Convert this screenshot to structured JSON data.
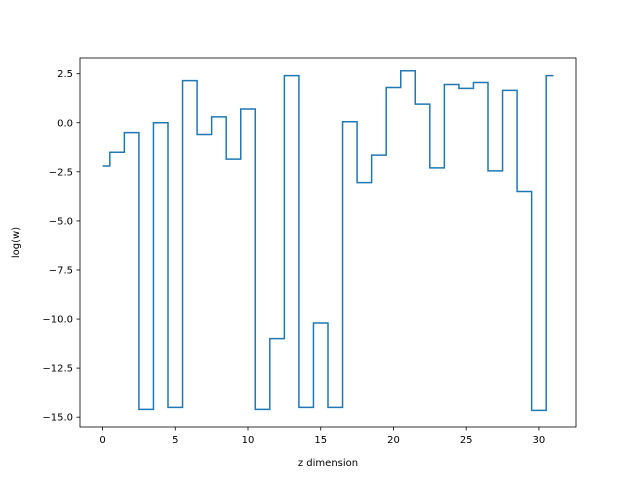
{
  "chart_data": {
    "type": "line",
    "drawstyle": "steps-mid",
    "title": "",
    "xlabel": "z dimension",
    "ylabel": "log(w)",
    "xlim": [
      -1.55,
      32.55
    ],
    "ylim": [
      -15.5,
      3.3
    ],
    "grid": false,
    "legend": "none",
    "x_ticks": [
      0,
      5,
      10,
      15,
      20,
      25,
      30
    ],
    "x_tick_labels": [
      "0",
      "5",
      "10",
      "15",
      "20",
      "25",
      "30"
    ],
    "y_ticks": [
      2.5,
      0.0,
      -2.5,
      -5.0,
      -7.5,
      -10.0,
      -12.5,
      -15.0
    ],
    "y_tick_labels": [
      "2.5",
      "0.0",
      "−2.5",
      "−5.0",
      "−7.5",
      "−10.0",
      "−12.5",
      "−15.0"
    ],
    "series": [
      {
        "color": "#1f77b4",
        "x": [
          0,
          1,
          2,
          3,
          4,
          5,
          6,
          7,
          8,
          9,
          10,
          11,
          12,
          13,
          14,
          15,
          16,
          17,
          18,
          19,
          20,
          21,
          22,
          23,
          24,
          25,
          26,
          27,
          28,
          29,
          30,
          31
        ],
        "y": [
          -2.2,
          -1.5,
          -0.5,
          -14.6,
          0.0,
          -14.5,
          2.15,
          -0.6,
          0.3,
          -1.85,
          0.7,
          -14.6,
          -11.0,
          2.4,
          -14.5,
          -10.2,
          -14.5,
          0.05,
          -3.05,
          -1.65,
          1.8,
          2.65,
          0.95,
          -2.3,
          1.95,
          1.75,
          2.05,
          -2.45,
          1.65,
          -3.5,
          -14.65,
          2.4
        ]
      }
    ]
  }
}
